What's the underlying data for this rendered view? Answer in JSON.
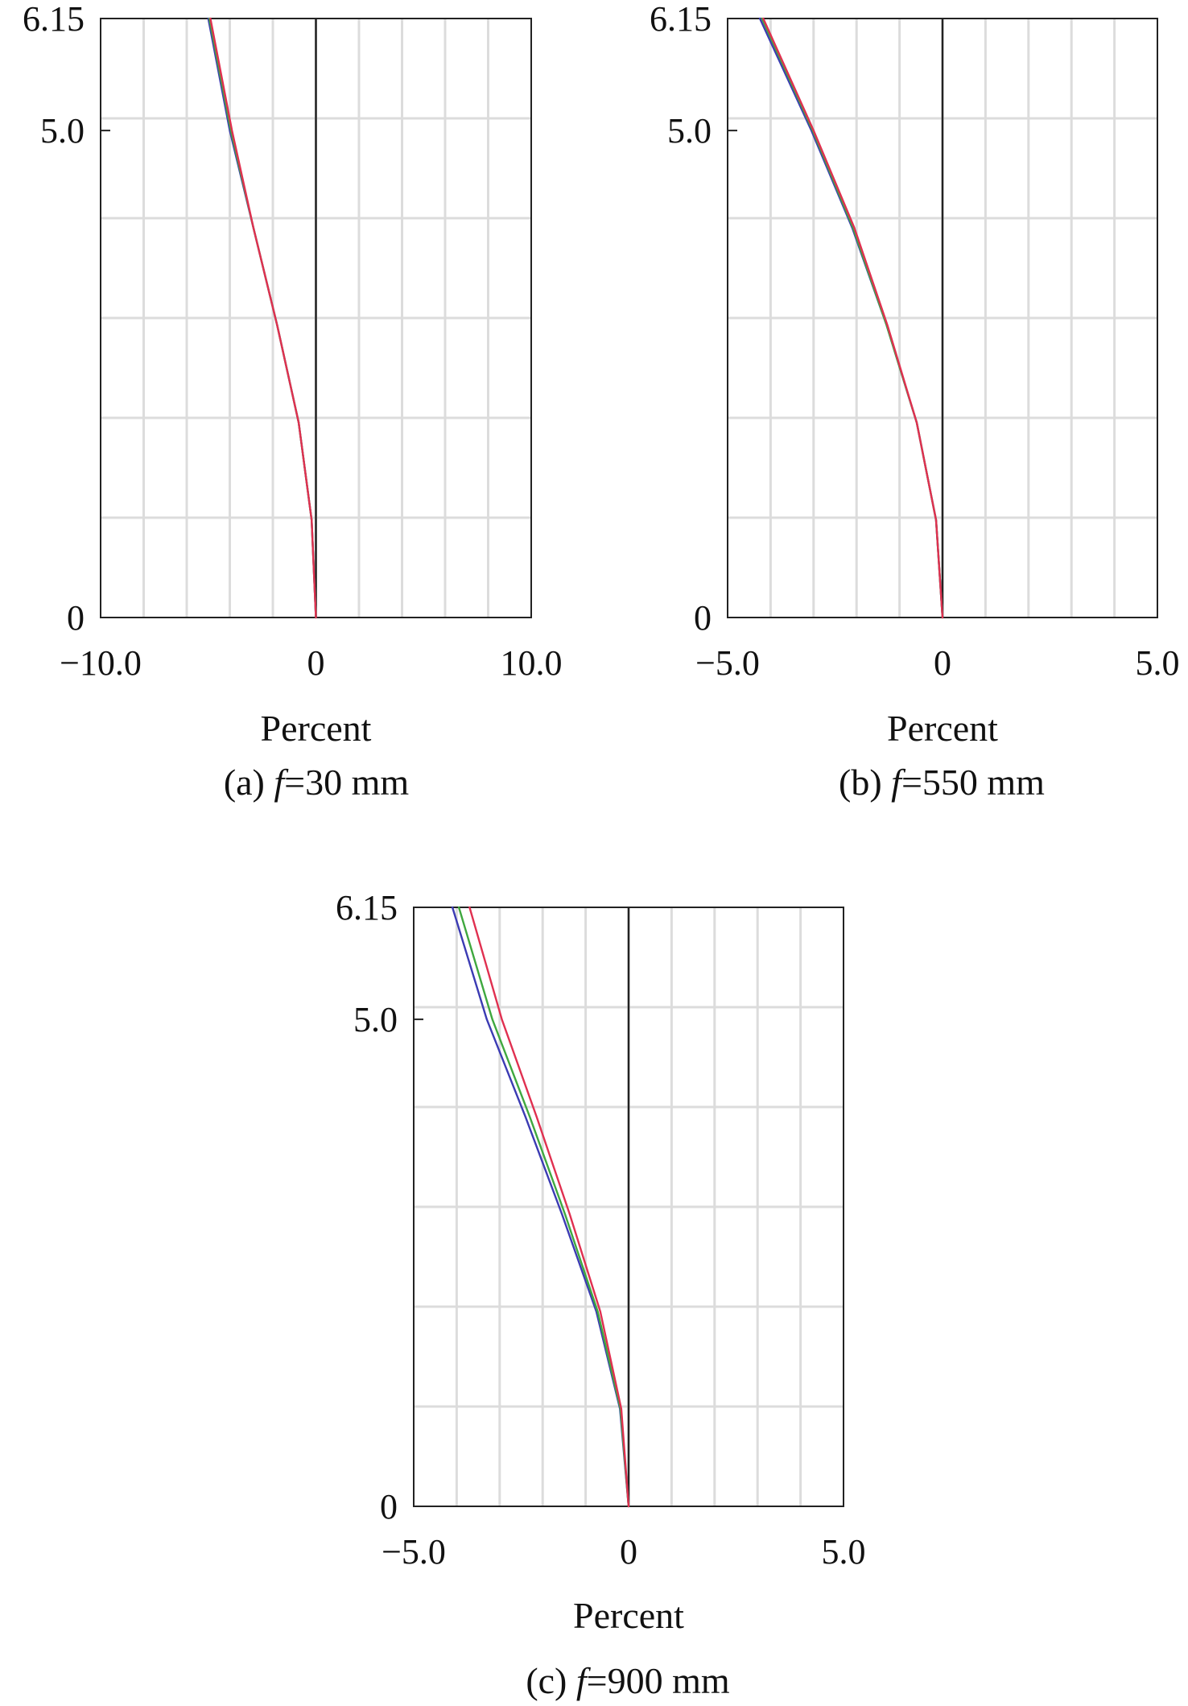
{
  "figure": {
    "panels": [
      {
        "caption_prefix": "(a) ",
        "caption_var": "f",
        "caption_suffix": "=30 mm"
      },
      {
        "caption_prefix": "(b) ",
        "caption_var": "f",
        "caption_suffix": "=550 mm"
      },
      {
        "caption_prefix": "(c) ",
        "caption_var": "f",
        "caption_suffix": "=900 mm"
      }
    ]
  },
  "chart_data": [
    {
      "type": "line",
      "xlabel": "Percent",
      "ylabel": "",
      "xlim": [
        -10.0,
        10.0
      ],
      "ylim": [
        0,
        6.15
      ],
      "x_ticks": [
        -10.0,
        0,
        10.0
      ],
      "x_tick_labels": [
        "−10.0",
        "0",
        "10.0"
      ],
      "y_ticks": [
        0,
        5.0,
        6.15
      ],
      "y_tick_labels": [
        "0",
        "5.0",
        "6.15"
      ],
      "grid": true,
      "colors": [
        "#3b3bb3",
        "#3fa83f",
        "#e03050"
      ],
      "series": [
        {
          "color": "#3b3bb3",
          "y": [
            0,
            1.0,
            2.0,
            3.0,
            4.0,
            5.0,
            6.15
          ],
          "x": [
            0,
            -0.2,
            -0.8,
            -1.8,
            -2.9,
            -4.0,
            -5.0
          ]
        },
        {
          "color": "#3fa83f",
          "y": [
            0,
            1.0,
            2.0,
            3.0,
            4.0,
            5.0,
            6.15
          ],
          "x": [
            0,
            -0.2,
            -0.8,
            -1.8,
            -2.9,
            -3.95,
            -4.95
          ]
        },
        {
          "color": "#e03050",
          "y": [
            0,
            1.0,
            2.0,
            3.0,
            4.0,
            5.0,
            6.15
          ],
          "x": [
            0,
            -0.2,
            -0.8,
            -1.8,
            -2.9,
            -3.9,
            -4.9
          ]
        }
      ]
    },
    {
      "type": "line",
      "xlabel": "Percent",
      "ylabel": "",
      "xlim": [
        -5.0,
        5.0
      ],
      "ylim": [
        0,
        6.15
      ],
      "x_ticks": [
        -5.0,
        0,
        5.0
      ],
      "x_tick_labels": [
        "−5.0",
        "0",
        "5.0"
      ],
      "y_ticks": [
        0,
        5.0,
        6.15
      ],
      "y_tick_labels": [
        "0",
        "5.0",
        "6.15"
      ],
      "grid": true,
      "colors": [
        "#3b3bb3",
        "#3fa83f",
        "#e03050"
      ],
      "series": [
        {
          "color": "#3b3bb3",
          "y": [
            0,
            1.0,
            2.0,
            3.0,
            4.0,
            5.0,
            6.15
          ],
          "x": [
            0,
            -0.15,
            -0.6,
            -1.3,
            -2.1,
            -3.05,
            -4.25
          ]
        },
        {
          "color": "#3fa83f",
          "y": [
            0,
            1.0,
            2.0,
            3.0,
            4.0,
            5.0,
            6.15
          ],
          "x": [
            0,
            -0.15,
            -0.6,
            -1.3,
            -2.08,
            -3.02,
            -4.2
          ]
        },
        {
          "color": "#e03050",
          "y": [
            0,
            1.0,
            2.0,
            3.0,
            4.0,
            5.0,
            6.15
          ],
          "x": [
            0,
            -0.15,
            -0.6,
            -1.28,
            -2.05,
            -3.0,
            -4.17
          ]
        }
      ]
    },
    {
      "type": "line",
      "xlabel": "Percent",
      "ylabel": "",
      "xlim": [
        -5.0,
        5.0
      ],
      "ylim": [
        0,
        6.15
      ],
      "x_ticks": [
        -5.0,
        0,
        5.0
      ],
      "x_tick_labels": [
        "−5.0",
        "0",
        "5.0"
      ],
      "y_ticks": [
        0,
        5.0,
        6.15
      ],
      "y_tick_labels": [
        "0",
        "5.0",
        "6.15"
      ],
      "grid": true,
      "colors": [
        "#3b3bb3",
        "#3fa83f",
        "#e03050"
      ],
      "series": [
        {
          "color": "#3b3bb3",
          "y": [
            0,
            1.0,
            2.0,
            3.0,
            4.0,
            5.0,
            6.15
          ],
          "x": [
            0,
            -0.2,
            -0.75,
            -1.55,
            -2.4,
            -3.3,
            -4.1
          ]
        },
        {
          "color": "#3fa83f",
          "y": [
            0,
            1.0,
            2.0,
            3.0,
            4.0,
            5.0,
            6.15
          ],
          "x": [
            0,
            -0.19,
            -0.72,
            -1.48,
            -2.3,
            -3.17,
            -3.95
          ]
        },
        {
          "color": "#e03050",
          "y": [
            0,
            1.0,
            2.0,
            3.0,
            4.0,
            5.0,
            6.15
          ],
          "x": [
            0,
            -0.17,
            -0.66,
            -1.37,
            -2.14,
            -2.95,
            -3.7
          ]
        }
      ]
    }
  ]
}
